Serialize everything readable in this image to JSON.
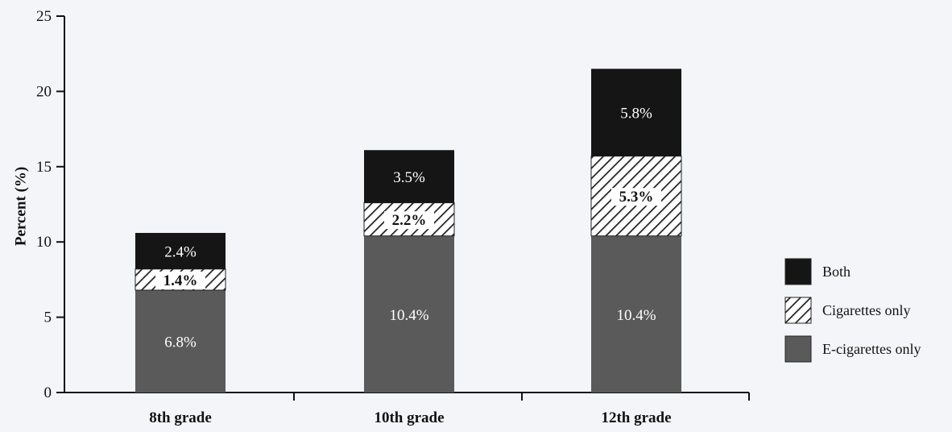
{
  "chart_data": {
    "type": "bar",
    "stacked": true,
    "ylabel": "Percent (%)",
    "xlabel": "",
    "ylim": [
      0,
      25
    ],
    "yticks": [
      0,
      5,
      10,
      15,
      20,
      25
    ],
    "categories": [
      "8th grade",
      "10th grade",
      "12th grade"
    ],
    "series": [
      {
        "name": "E-cigarettes only",
        "values": [
          6.8,
          10.4,
          10.4
        ],
        "labels": [
          "6.8%",
          "10.4%",
          "10.4%"
        ],
        "color": "#5a5a5a",
        "pattern": "solid"
      },
      {
        "name": "Cigarettes only",
        "values": [
          1.4,
          2.2,
          5.3
        ],
        "labels": [
          "1.4%",
          "2.2%",
          "5.3%"
        ],
        "color": "#ffffff",
        "pattern": "hatch"
      },
      {
        "name": "Both",
        "values": [
          2.4,
          3.5,
          5.8
        ],
        "labels": [
          "2.4%",
          "3.5%",
          "5.8%"
        ],
        "color": "#151515",
        "pattern": "solid"
      }
    ],
    "legend": {
      "placement": "right",
      "order": [
        "Both",
        "Cigarettes only",
        "E-cigarettes only"
      ]
    },
    "grid": false
  }
}
